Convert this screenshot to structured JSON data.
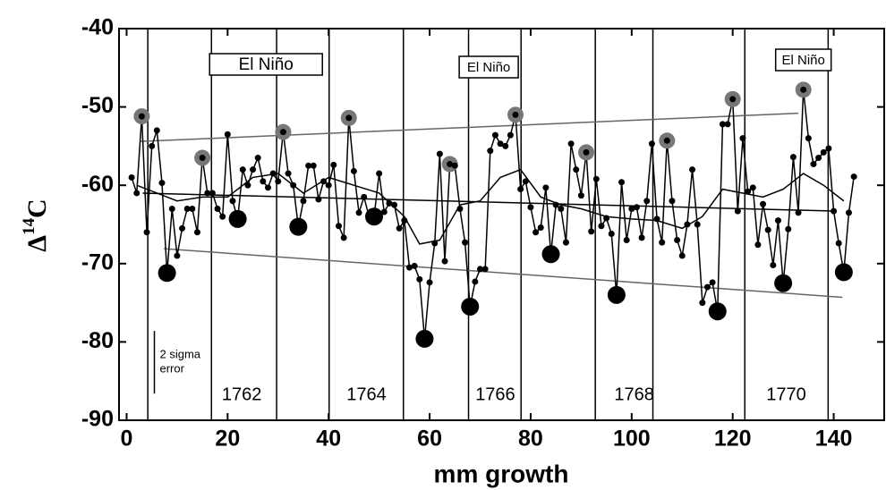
{
  "chart_data": {
    "type": "line",
    "xlabel": "mm growth",
    "ylabel": [
      "Δ",
      "14",
      "C"
    ],
    "xlim": [
      -1.5,
      150
    ],
    "ylim": [
      -90,
      -40
    ],
    "xticks": [
      0,
      20,
      40,
      60,
      80,
      100,
      120,
      140
    ],
    "yticks": [
      -90,
      -80,
      -70,
      -60,
      -50,
      -40
    ],
    "series": [
      {
        "name": "measured",
        "color": "#000000",
        "x": [
          1,
          2,
          3,
          4,
          5,
          6,
          7,
          8,
          9,
          10,
          11,
          12,
          13,
          14,
          15,
          16,
          17,
          18,
          19,
          20,
          21,
          22,
          23,
          24,
          25,
          26,
          27,
          28,
          29,
          30,
          31,
          32,
          33,
          34,
          35,
          36,
          37,
          38,
          39,
          40,
          41,
          42,
          43,
          44,
          45,
          46,
          47,
          48,
          49,
          50,
          51,
          52,
          53,
          54,
          55,
          56,
          57,
          58,
          59,
          60,
          61,
          62,
          63,
          64,
          65,
          66,
          67,
          68,
          69,
          70,
          71,
          72,
          73,
          74,
          75,
          76,
          77,
          78,
          79,
          80,
          81,
          82,
          83,
          84,
          85,
          86,
          87,
          88,
          89,
          90,
          91,
          92,
          93,
          94,
          95,
          96,
          97,
          98,
          99,
          100,
          101,
          102,
          103,
          104,
          105,
          106,
          107,
          108,
          109,
          110,
          111,
          112,
          113,
          114,
          115,
          116,
          117,
          118,
          119,
          120,
          121,
          122,
          123,
          124,
          125,
          126,
          127,
          128,
          129,
          130,
          131,
          132,
          133,
          134,
          135,
          136,
          137,
          138,
          139,
          140,
          141,
          142,
          143,
          144
        ],
        "values": [
          -59,
          -61,
          -51.2,
          -66,
          -55,
          -53,
          -59.7,
          -71.2,
          -63,
          -69,
          -65.5,
          -63,
          -63,
          -66,
          -56.5,
          -61,
          -61,
          -63,
          -64,
          -53.5,
          -62,
          -64.3,
          -58,
          -60,
          -58,
          -56.5,
          -59.5,
          -60.3,
          -58.5,
          -59.5,
          -53.2,
          -58.5,
          -60,
          -65.3,
          -62,
          -57.5,
          -57.5,
          -61.8,
          -59.5,
          -60,
          -57.4,
          -65.2,
          -66.7,
          -51.4,
          -58.2,
          -63.5,
          -61.5,
          -64,
          -64,
          -58.5,
          -63.4,
          -62.3,
          -62.5,
          -65.5,
          -64.5,
          -70.5,
          -70.3,
          -72,
          -79.6,
          -72.4,
          -67.4,
          -56,
          -69.7,
          -57.3,
          -57.5,
          -63,
          -67.3,
          -75.5,
          -72.3,
          -70.7,
          -70.7,
          -55.6,
          -53.6,
          -54.7,
          -55,
          -53.6,
          -51,
          -60.5,
          -59.5,
          -62.8,
          -66,
          -65.4,
          -60.3,
          -68.8,
          -62.5,
          -63,
          -67.3,
          -54.7,
          -58,
          -61.3,
          -55.8,
          -65.9,
          -59.2,
          -65.2,
          -64.2,
          -66.2,
          -74,
          -59.6,
          -67,
          -63,
          -62.8,
          -66.7,
          -62,
          -54.7,
          -64.3,
          -67.3,
          -54.3,
          -62,
          -67,
          -69,
          -65,
          -58,
          -65,
          -75,
          -73,
          -72.4,
          -76.1,
          -52.2,
          -52.2,
          -49,
          -63.3,
          -54,
          -60.8,
          -60.3,
          -67.6,
          -62.4,
          -65.7,
          -70.2,
          -64.5,
          -72.5,
          -65.6,
          -56.4,
          -63.5,
          -47.8,
          -54,
          -57.3,
          -56.5,
          -55.8,
          -55.3,
          -63.3,
          -67.4,
          -71.1,
          -63.5,
          -58.9
        ]
      },
      {
        "name": "running mean",
        "color": "#000000",
        "x": [
          2,
          6,
          10,
          15,
          20,
          25,
          30,
          35,
          40,
          45,
          50,
          55,
          58,
          62,
          66,
          70,
          74,
          78,
          82,
          86,
          90,
          95,
          100,
          105,
          110,
          114,
          118,
          122,
          126,
          130,
          134,
          138,
          142
        ],
        "values": [
          -60,
          -61,
          -62,
          -61.5,
          -61.5,
          -59,
          -58.5,
          -61,
          -59,
          -60,
          -61,
          -64,
          -67.5,
          -67,
          -62.5,
          -62,
          -59,
          -58,
          -61.5,
          -62.5,
          -63,
          -64,
          -64.3,
          -64.5,
          -65.5,
          -64,
          -60.5,
          -61,
          -61.5,
          -60.5,
          -58.5,
          -60,
          -62
        ]
      }
    ],
    "peaks": {
      "color": "#777777",
      "x": [
        3,
        15,
        31,
        44,
        64,
        77,
        91,
        107,
        120,
        134
      ],
      "values": [
        -51.2,
        -56.5,
        -53.2,
        -51.4,
        -57.3,
        -51,
        -55.8,
        -54.3,
        -49,
        -47.8
      ]
    },
    "troughs": {
      "color": "#000000",
      "x": [
        8,
        22,
        34,
        49,
        59,
        68,
        84,
        97,
        117,
        130,
        142
      ],
      "values": [
        -71.2,
        -64.3,
        -65.3,
        -64,
        -79.6,
        -75.5,
        -68.8,
        -74,
        -76.1,
        -72.5,
        -71.1
      ]
    },
    "trend_lines": [
      {
        "color": "#666666",
        "x": [
          2.8,
          133
        ],
        "values": [
          -54.4,
          -50.8
        ]
      },
      {
        "color": "#000000",
        "x": [
          3.2,
          140.6
        ],
        "values": [
          -61,
          -63.3
        ]
      },
      {
        "color": "#666666",
        "x": [
          7.4,
          141.7
        ],
        "values": [
          -68.1,
          -74.3
        ]
      }
    ],
    "year_boundaries": [
      4.2,
      16.8,
      29.7,
      40.1,
      54.8,
      67.7,
      78.1,
      92.8,
      104.2,
      122.4,
      138.9
    ],
    "year_labels": [
      {
        "text": "1762",
        "x": 22.8
      },
      {
        "text": "1764",
        "x": 47.5
      },
      {
        "text": "1766",
        "x": 73
      },
      {
        "text": "1768",
        "x": 100.5
      },
      {
        "text": "1770",
        "x": 130.6
      }
    ],
    "el_nino_labels": [
      {
        "text": "El Niño",
        "x": 27.6
      },
      {
        "text": "El Niño",
        "x": 71.7
      },
      {
        "text": "El Niño",
        "x": 134
      }
    ],
    "error_bar": {
      "label": [
        "2 sigma",
        "error"
      ],
      "x": 5.5,
      "values": [
        -78.6,
        -86.6
      ]
    }
  }
}
